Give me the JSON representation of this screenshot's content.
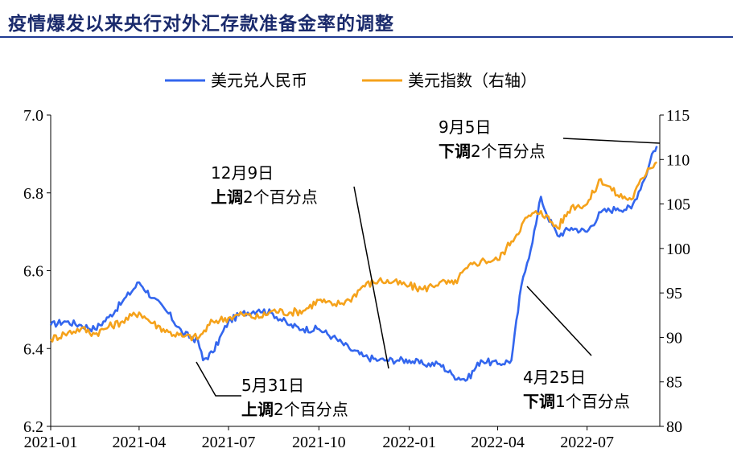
{
  "title": "疫情爆发以来央行对外汇存款准备金率的调整",
  "chart_data": {
    "type": "line",
    "x_ticks": [
      "2021-01",
      "2021-04",
      "2021-07",
      "2021-10",
      "2022-01",
      "2022-04",
      "2022-07"
    ],
    "y_left": {
      "ticks": [
        "6.2",
        "6.4",
        "6.6",
        "6.8",
        "7.0"
      ],
      "ylim": [
        6.2,
        7.0
      ]
    },
    "y_right": {
      "ticks": [
        "80",
        "85",
        "90",
        "95",
        "100",
        "105",
        "110",
        "115"
      ],
      "ylim": [
        80,
        115
      ]
    },
    "legend": {
      "placement": "top-center"
    },
    "series": [
      {
        "name": "美元兑人民币",
        "axis": "left",
        "color": "#3366ee",
        "x": [
          "2021-01-01",
          "2021-01-15",
          "2021-02-01",
          "2021-02-15",
          "2021-03-01",
          "2021-03-15",
          "2021-04-01",
          "2021-04-15",
          "2021-05-01",
          "2021-05-15",
          "2021-05-31",
          "2021-06-05",
          "2021-06-15",
          "2021-07-01",
          "2021-07-15",
          "2021-08-01",
          "2021-08-15",
          "2021-09-01",
          "2021-09-15",
          "2021-10-01",
          "2021-10-15",
          "2021-11-01",
          "2021-11-15",
          "2021-12-01",
          "2021-12-09",
          "2021-12-20",
          "2022-01-01",
          "2022-01-15",
          "2022-02-01",
          "2022-02-15",
          "2022-03-01",
          "2022-03-15",
          "2022-04-01",
          "2022-04-15",
          "2022-04-25",
          "2022-05-01",
          "2022-05-10",
          "2022-05-15",
          "2022-05-20",
          "2022-06-01",
          "2022-06-15",
          "2022-07-01",
          "2022-07-15",
          "2022-08-01",
          "2022-08-15",
          "2022-09-01",
          "2022-09-05",
          "2022-09-10"
        ],
        "values": [
          6.46,
          6.47,
          6.46,
          6.45,
          6.48,
          6.52,
          6.57,
          6.53,
          6.49,
          6.44,
          6.42,
          6.37,
          6.39,
          6.47,
          6.49,
          6.5,
          6.49,
          6.46,
          6.45,
          6.45,
          6.43,
          6.4,
          6.38,
          6.37,
          6.37,
          6.37,
          6.37,
          6.36,
          6.36,
          6.33,
          6.32,
          6.37,
          6.36,
          6.37,
          6.56,
          6.62,
          6.72,
          6.79,
          6.75,
          6.69,
          6.71,
          6.7,
          6.75,
          6.76,
          6.76,
          6.86,
          6.9,
          6.92
        ]
      },
      {
        "name": "美元指数（右轴）",
        "axis": "right",
        "color": "#f5a21b",
        "x": [
          "2021-01-01",
          "2021-01-15",
          "2021-02-01",
          "2021-02-15",
          "2021-03-01",
          "2021-03-15",
          "2021-04-01",
          "2021-04-15",
          "2021-05-01",
          "2021-05-15",
          "2021-06-01",
          "2021-06-15",
          "2021-07-01",
          "2021-07-15",
          "2021-08-01",
          "2021-08-15",
          "2021-09-01",
          "2021-09-15",
          "2021-10-01",
          "2021-10-15",
          "2021-11-01",
          "2021-11-15",
          "2021-12-01",
          "2021-12-15",
          "2022-01-01",
          "2022-01-15",
          "2022-02-01",
          "2022-02-15",
          "2022-03-01",
          "2022-03-15",
          "2022-04-01",
          "2022-04-15",
          "2022-05-01",
          "2022-05-15",
          "2022-06-01",
          "2022-06-15",
          "2022-07-01",
          "2022-07-15",
          "2022-08-01",
          "2022-08-15",
          "2022-09-01",
          "2022-09-10"
        ],
        "values": [
          89.8,
          90.4,
          91.0,
          90.4,
          91.2,
          91.8,
          92.8,
          91.6,
          90.6,
          90.1,
          90.0,
          91.8,
          92.2,
          92.6,
          92.2,
          93.0,
          92.8,
          93.0,
          94.2,
          93.6,
          94.2,
          95.8,
          96.4,
          96.2,
          95.8,
          95.4,
          96.2,
          96.0,
          97.8,
          98.6,
          98.7,
          100.8,
          103.5,
          104.2,
          102.3,
          104.7,
          105.0,
          107.8,
          106.0,
          105.5,
          109.0,
          109.7
        ]
      }
    ],
    "annotations": [
      {
        "date": "2021-05-31",
        "date_label": "5月31日",
        "action": "上调",
        "amount": "2个百分点"
      },
      {
        "date": "2021-12-09",
        "date_label": "12月9日",
        "action": "上调",
        "amount": "2个百分点"
      },
      {
        "date": "2022-04-25",
        "date_label": "4月25日",
        "action": "下调",
        "amount": "1个百分点"
      },
      {
        "date": "2022-09-05",
        "date_label": "9月5日",
        "action": "下调",
        "amount": "2个百分点"
      }
    ]
  }
}
